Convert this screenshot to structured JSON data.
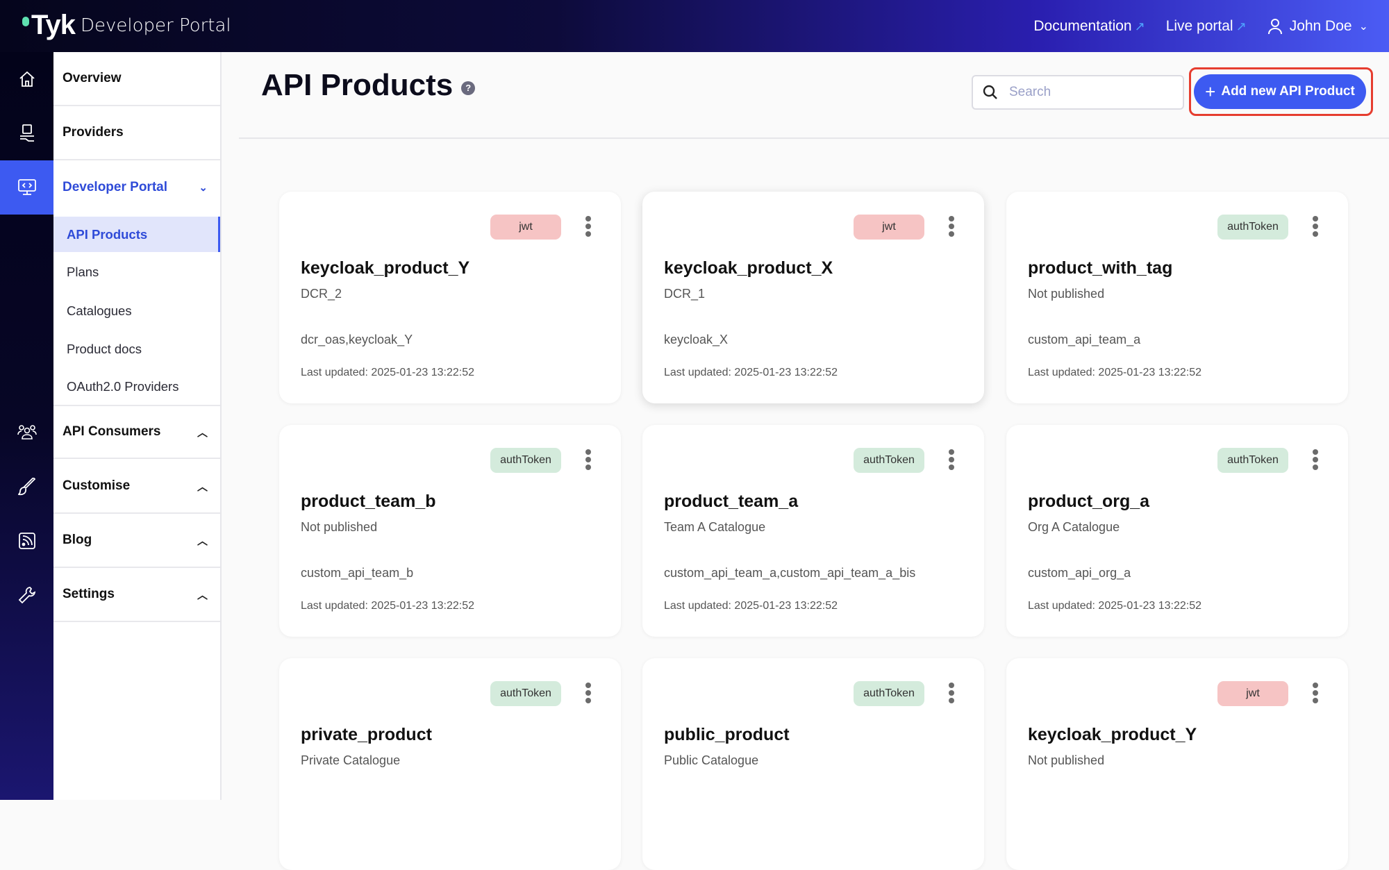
{
  "header": {
    "logo_text": "Tyk",
    "app_title": "Developer Portal",
    "links": [
      {
        "label": "Documentation",
        "icon": "external-link-icon"
      },
      {
        "label": "Live portal",
        "icon": "external-link-icon"
      }
    ],
    "user": {
      "name": "John Doe",
      "icon": "user-icon"
    }
  },
  "rail": {
    "icons": [
      "home-icon",
      "providers-icon",
      "developer-portal-icon",
      "api-consumers-icon",
      "customise-brush-icon",
      "blog-rss-icon",
      "settings-wrench-icon"
    ]
  },
  "sidebar": {
    "overview": "Overview",
    "providers": "Providers",
    "developer_portal": "Developer Portal",
    "sub": [
      "API Products",
      "Plans",
      "Catalogues",
      "Product docs",
      "OAuth2.0 Providers"
    ],
    "api_consumers": "API Consumers",
    "customise": "Customise",
    "blog": "Blog",
    "settings": "Settings"
  },
  "main": {
    "title": "API Products",
    "help": "?",
    "search_placeholder": "Search",
    "add_button": "Add new API Product"
  },
  "colors": {
    "accent": "#3d5af1",
    "jwt_tag": "#f6c4c4",
    "authtoken_tag": "#d4ebdc",
    "highlight": "#e63d2f"
  },
  "cards": [
    {
      "tag": "jwt",
      "name": "keycloak_product_Y",
      "subtitle": "DCR_2",
      "apis": "dcr_oas,keycloak_Y",
      "updated": "Last updated: 2025-01-23 13:22:52"
    },
    {
      "tag": "jwt",
      "name": "keycloak_product_X",
      "subtitle": "DCR_1",
      "apis": "keycloak_X",
      "updated": "Last updated: 2025-01-23 13:22:52"
    },
    {
      "tag": "authToken",
      "name": "product_with_tag",
      "subtitle": "Not published",
      "apis": "custom_api_team_a",
      "updated": "Last updated: 2025-01-23 13:22:52"
    },
    {
      "tag": "authToken",
      "name": "product_team_b",
      "subtitle": "Not published",
      "apis": "custom_api_team_b",
      "updated": "Last updated: 2025-01-23 13:22:52"
    },
    {
      "tag": "authToken",
      "name": "product_team_a",
      "subtitle": "Team A Catalogue",
      "apis": "custom_api_team_a,custom_api_team_a_bis",
      "updated": "Last updated: 2025-01-23 13:22:52"
    },
    {
      "tag": "authToken",
      "name": "product_org_a",
      "subtitle": "Org A Catalogue",
      "apis": "custom_api_org_a",
      "updated": "Last updated: 2025-01-23 13:22:52"
    },
    {
      "tag": "authToken",
      "name": "private_product",
      "subtitle": "Private Catalogue"
    },
    {
      "tag": "authToken",
      "name": "public_product",
      "subtitle": "Public Catalogue"
    },
    {
      "tag": "jwt",
      "name": "keycloak_product_Y",
      "subtitle": "Not published"
    }
  ]
}
